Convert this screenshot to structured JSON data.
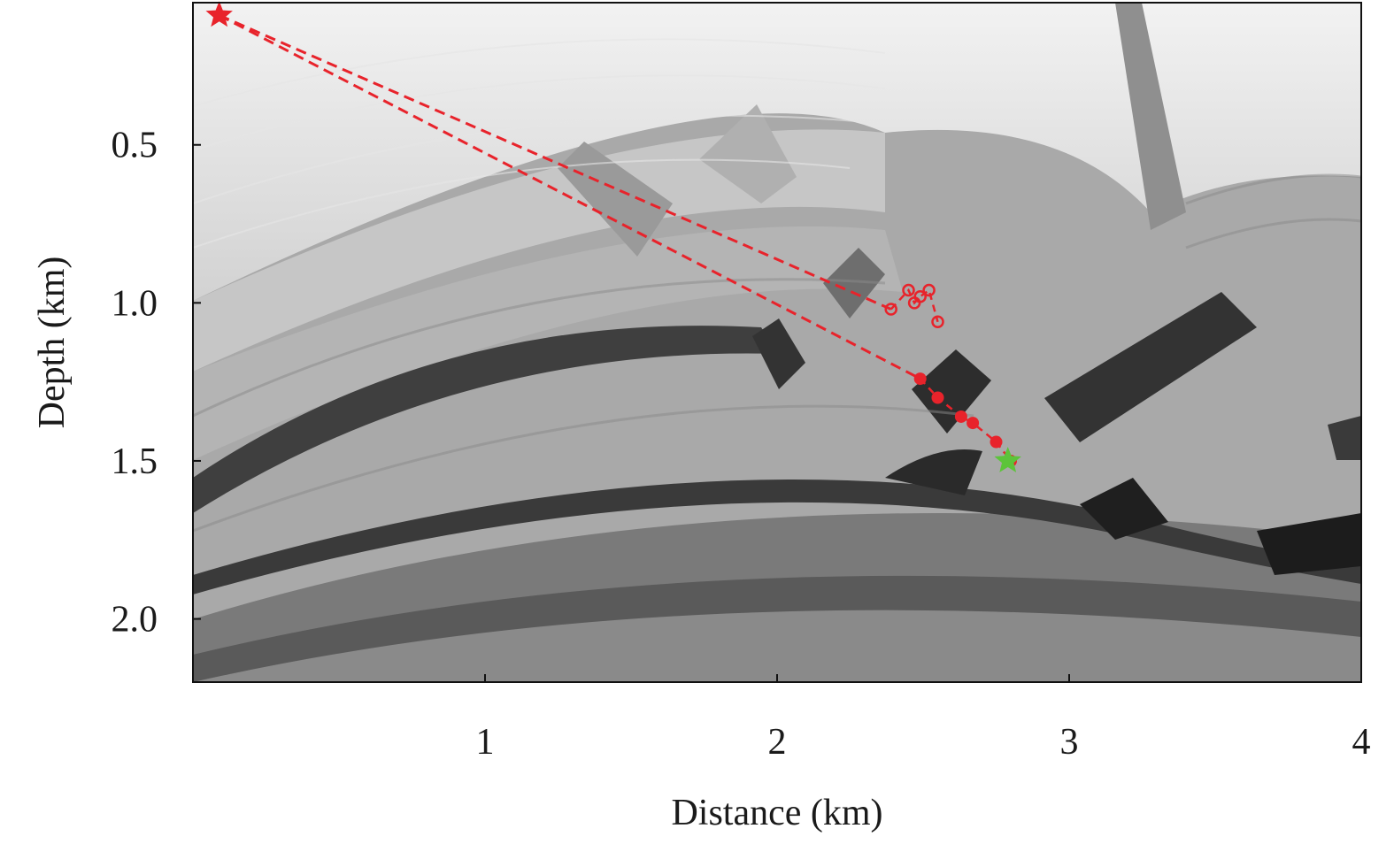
{
  "chart_data": {
    "type": "scatter",
    "xlabel": "Distance (km)",
    "ylabel": "Depth (km)",
    "xlim": [
      0.0,
      4.0
    ],
    "ylim": [
      0.05,
      2.2
    ],
    "y_inverted": true,
    "xticks": [
      {
        "value": 1,
        "label": "1"
      },
      {
        "value": 2,
        "label": "2"
      },
      {
        "value": 3,
        "label": "3"
      },
      {
        "value": 4,
        "label": "4"
      }
    ],
    "yticks": [
      {
        "value": 0.5,
        "label": "0.5"
      },
      {
        "value": 1.0,
        "label": "1.0"
      },
      {
        "value": 1.5,
        "label": "1.5"
      },
      {
        "value": 2.0,
        "label": "2.0"
      }
    ],
    "grid": false,
    "legend": "none",
    "background": "grayscale seismic velocity image",
    "colors": {
      "red": "#e8232b",
      "green": "#5cc43a",
      "frame": "#111111"
    },
    "source_star": {
      "x": 0.09,
      "y": 0.09
    },
    "true_location_star": {
      "x": 2.79,
      "y": 1.5
    },
    "series": [
      {
        "marker": "filled-circle",
        "points": [
          {
            "x": 2.49,
            "y": 1.24
          },
          {
            "x": 2.55,
            "y": 1.3
          },
          {
            "x": 2.63,
            "y": 1.36
          },
          {
            "x": 2.67,
            "y": 1.38
          },
          {
            "x": 2.75,
            "y": 1.44
          },
          {
            "x": 2.8,
            "y": 1.5
          }
        ]
      },
      {
        "marker": "open-circle",
        "points": [
          {
            "x": 2.39,
            "y": 1.02
          },
          {
            "x": 2.45,
            "y": 0.96
          },
          {
            "x": 2.47,
            "y": 1.0
          },
          {
            "x": 2.49,
            "y": 0.98
          },
          {
            "x": 2.52,
            "y": 0.96
          },
          {
            "x": 2.55,
            "y": 1.06
          }
        ]
      }
    ]
  }
}
